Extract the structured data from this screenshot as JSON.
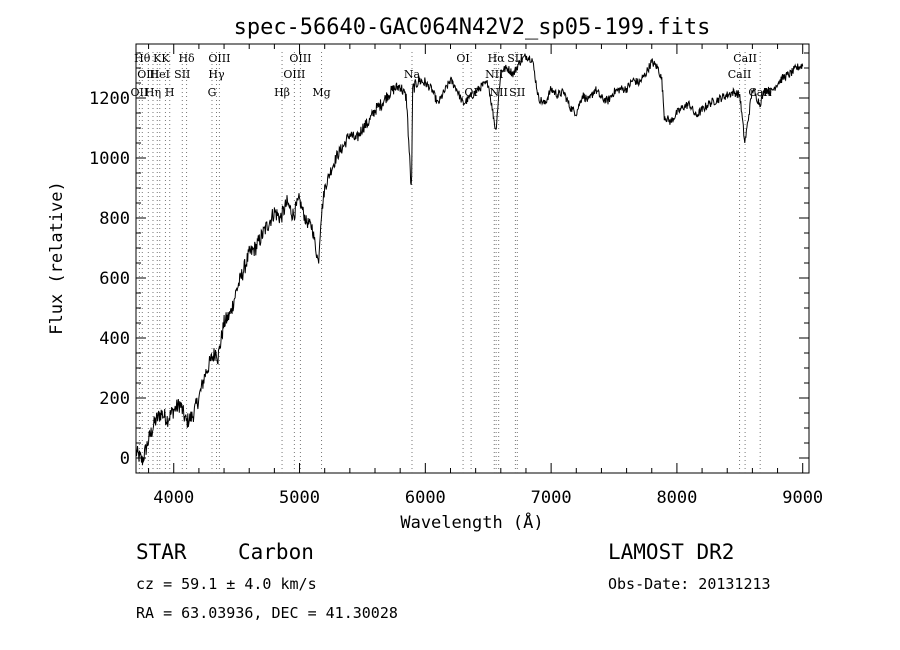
{
  "chart_data": {
    "type": "line",
    "title": "spec-56640-GAC064N42V2_sp05-199.fits",
    "xlabel": "Wavelength (Å)",
    "ylabel": "Flux (relative)",
    "xlim": [
      3700,
      9050
    ],
    "ylim": [
      -50,
      1380
    ],
    "xticks": [
      4000,
      5000,
      6000,
      7000,
      8000,
      9000
    ],
    "yticks": [
      0,
      200,
      400,
      600,
      800,
      1000,
      1200
    ],
    "xtick_labels": [
      "4000",
      "5000",
      "6000",
      "7000",
      "8000",
      "9000"
    ],
    "ytick_labels": [
      "0",
      "200",
      "400",
      "600",
      "800",
      "1000",
      "1200"
    ],
    "grid": false,
    "series": [
      {
        "x": [
          3700,
          3750,
          3800,
          3850,
          3900,
          3950,
          4000,
          4050,
          4100,
          4150,
          4200,
          4250,
          4300,
          4340,
          4350,
          4400,
          4450,
          4500,
          4550,
          4600,
          4650,
          4700,
          4750,
          4800,
          4850,
          4900,
          4950,
          5000,
          5050,
          5100,
          5150,
          5170,
          5200,
          5250,
          5300,
          5350,
          5400,
          5450,
          5500,
          5550,
          5600,
          5650,
          5700,
          5750,
          5800,
          5850,
          5890,
          5900,
          5950,
          6000,
          6050,
          6100,
          6150,
          6200,
          6250,
          6300,
          6350,
          6400,
          6450,
          6500,
          6560,
          6600,
          6650,
          6700,
          6750,
          6800,
          6850,
          6900,
          6950,
          7000,
          7050,
          7100,
          7150,
          7200,
          7250,
          7300,
          7350,
          7400,
          7450,
          7500,
          7550,
          7600,
          7650,
          7700,
          7750,
          7800,
          7850,
          7880,
          7900,
          7950,
          8000,
          8050,
          8100,
          8150,
          8200,
          8250,
          8300,
          8350,
          8400,
          8450,
          8500,
          8540,
          8600,
          8660,
          8700,
          8750,
          8800,
          8850,
          8900,
          8950,
          9000
        ],
        "y": [
          20,
          -10,
          60,
          120,
          150,
          130,
          160,
          180,
          120,
          140,
          200,
          280,
          330,
          360,
          330,
          450,
          480,
          560,
          620,
          680,
          700,
          740,
          780,
          820,
          800,
          850,
          810,
          860,
          790,
          770,
          650,
          800,
          900,
          960,
          1010,
          1040,
          1080,
          1060,
          1100,
          1120,
          1160,
          1180,
          1210,
          1230,
          1240,
          1200,
          880,
          1230,
          1260,
          1250,
          1230,
          1180,
          1220,
          1260,
          1230,
          1180,
          1200,
          1220,
          1240,
          1250,
          1090,
          1290,
          1300,
          1280,
          1320,
          1340,
          1330,
          1200,
          1180,
          1230,
          1210,
          1220,
          1170,
          1150,
          1210,
          1190,
          1230,
          1200,
          1190,
          1220,
          1230,
          1230,
          1260,
          1250,
          1280,
          1320,
          1300,
          1260,
          1140,
          1120,
          1150,
          1170,
          1180,
          1140,
          1160,
          1180,
          1190,
          1200,
          1210,
          1220,
          1210,
          1050,
          1230,
          1180,
          1230,
          1220,
          1250,
          1270,
          1280,
          1300,
          1310
        ]
      }
    ],
    "lines": [
      {
        "wl": 3727,
        "label": "OII",
        "row": 2
      },
      {
        "wl": 3750,
        "label": "Hθ",
        "row": 0
      },
      {
        "wl": 3798,
        "label": "OIII",
        "row": 1
      },
      {
        "wl": 3835,
        "label": "Hη",
        "row": 2
      },
      {
        "wl": 3869,
        "label": "K",
        "row": 0
      },
      {
        "wl": 3889,
        "label": "HeI",
        "row": 1
      },
      {
        "wl": 3934,
        "label": "K",
        "row": 0
      },
      {
        "wl": 3968,
        "label": "H",
        "row": 2
      },
      {
        "wl": 4068,
        "label": "SII",
        "row": 1
      },
      {
        "wl": 4102,
        "label": "Hδ",
        "row": 0
      },
      {
        "wl": 4304,
        "label": "G",
        "row": 2
      },
      {
        "wl": 4340,
        "label": "Hγ",
        "row": 1
      },
      {
        "wl": 4363,
        "label": "OIII",
        "row": 0
      },
      {
        "wl": 4861,
        "label": "Hβ",
        "row": 2
      },
      {
        "wl": 4959,
        "label": "OIII",
        "row": 1
      },
      {
        "wl": 5007,
        "label": "OIII",
        "row": 0
      },
      {
        "wl": 5175,
        "label": "Mg",
        "row": 2
      },
      {
        "wl": 5894,
        "label": "Na",
        "row": 1
      },
      {
        "wl": 6300,
        "label": "OI",
        "row": 0
      },
      {
        "wl": 6364,
        "label": "OI",
        "row": 2
      },
      {
        "wl": 6548,
        "label": "NII",
        "row": 1
      },
      {
        "wl": 6563,
        "label": "Hα",
        "row": 0
      },
      {
        "wl": 6583,
        "label": "NII",
        "row": 2
      },
      {
        "wl": 6716,
        "label": "SII",
        "row": 0
      },
      {
        "wl": 6731,
        "label": "SII",
        "row": 2
      },
      {
        "wl": 8498,
        "label": "CaII",
        "row": 1
      },
      {
        "wl": 8542,
        "label": "CaII",
        "row": 0
      },
      {
        "wl": 8662,
        "label": "CaII",
        "row": 2
      }
    ]
  },
  "info": {
    "class_label": "STAR",
    "subclass_label": "Carbon",
    "survey": "LAMOST DR2",
    "cz": "cz = 59.1 ± 4.0 km/s",
    "obs_date": "Obs-Date: 20131213",
    "coords": "RA =  63.03936, DEC =  41.30028"
  }
}
